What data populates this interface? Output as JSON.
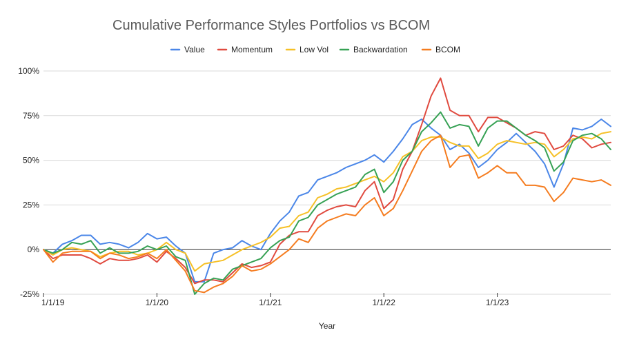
{
  "chart_data": {
    "type": "line",
    "title": "Cumulative Performance Styles Portfolios vs BCOM",
    "xlabel": "Year",
    "ylabel": "",
    "x_ticks": [
      "1/1/19",
      "1/1/20",
      "1/1/21",
      "1/1/22",
      "1/1/23"
    ],
    "y_ticks": [
      "100%",
      "75%",
      "50%",
      "25%",
      "0%",
      "-25%"
    ],
    "ylim": [
      -25,
      100
    ],
    "x_months_range": [
      0,
      60
    ],
    "grid": "horizontal",
    "legend_position": "top",
    "series": [
      {
        "name": "Value",
        "color": "#4a86e8",
        "values": [
          0,
          -2,
          3,
          5,
          8,
          8,
          3,
          4,
          3,
          1,
          4,
          9,
          6,
          7,
          2,
          -2,
          -18,
          -18,
          -2,
          0,
          1,
          5,
          2,
          0,
          9,
          16,
          21,
          30,
          32,
          39,
          41,
          43,
          46,
          48,
          50,
          53,
          49,
          55,
          62,
          70,
          73,
          68,
          64,
          56,
          59,
          54,
          46,
          50,
          56,
          60,
          65,
          60,
          55,
          48,
          35,
          48,
          68,
          67,
          69,
          73,
          69
        ]
      },
      {
        "name": "Momentum",
        "color": "#e04a3f",
        "values": [
          0,
          -5,
          -3,
          -3,
          -3,
          -5,
          -8,
          -5,
          -6,
          -6,
          -5,
          -3,
          -7,
          -1,
          -5,
          -10,
          -19,
          -17,
          -17,
          -18,
          -13,
          -8,
          -10,
          -9,
          -7,
          3,
          8,
          10,
          10,
          19,
          22,
          24,
          25,
          24,
          33,
          38,
          23,
          28,
          45,
          55,
          70,
          86,
          96,
          78,
          75,
          75,
          66,
          74,
          74,
          71,
          68,
          64,
          66,
          65,
          56,
          58,
          64,
          62,
          57,
          59,
          60
        ]
      },
      {
        "name": "Low Vol",
        "color": "#f6c026",
        "values": [
          0,
          -3,
          0,
          1,
          0,
          -1,
          -4,
          -2,
          -1,
          -1,
          -3,
          -2,
          0,
          4,
          0,
          -2,
          -12,
          -8,
          -7,
          -6,
          -3,
          0,
          2,
          4,
          7,
          12,
          13,
          19,
          21,
          29,
          31,
          34,
          35,
          37,
          39,
          41,
          38,
          43,
          52,
          55,
          61,
          63,
          63,
          60,
          58,
          58,
          51,
          54,
          59,
          61,
          60,
          59,
          60,
          59,
          52,
          56,
          62,
          63,
          62,
          65,
          66
        ]
      },
      {
        "name": "Backwardation",
        "color": "#36a154",
        "values": [
          0,
          -2,
          0,
          4,
          3,
          5,
          -2,
          1,
          -2,
          -2,
          -1,
          2,
          0,
          2,
          -4,
          -6,
          -25,
          -19,
          -16,
          -17,
          -11,
          -9,
          -7,
          -5,
          1,
          5,
          7,
          16,
          18,
          25,
          28,
          31,
          33,
          35,
          42,
          45,
          32,
          38,
          50,
          55,
          66,
          71,
          77,
          68,
          70,
          69,
          58,
          68,
          72,
          72,
          68,
          64,
          61,
          57,
          44,
          49,
          61,
          64,
          65,
          62,
          56
        ]
      },
      {
        "name": "BCOM",
        "color": "#f57c1f",
        "values": [
          0,
          -7,
          -2,
          -1,
          -1,
          -1,
          -5,
          -2,
          -3,
          -5,
          -4,
          -2,
          -5,
          0,
          -6,
          -12,
          -23,
          -24,
          -21,
          -19,
          -15,
          -9,
          -12,
          -11,
          -8,
          -4,
          0,
          6,
          4,
          12,
          16,
          18,
          20,
          19,
          25,
          29,
          19,
          23,
          33,
          44,
          55,
          61,
          64,
          46,
          52,
          53,
          40,
          43,
          47,
          43,
          43,
          36,
          36,
          35,
          27,
          32,
          40,
          39,
          38,
          39,
          36
        ]
      }
    ]
  }
}
